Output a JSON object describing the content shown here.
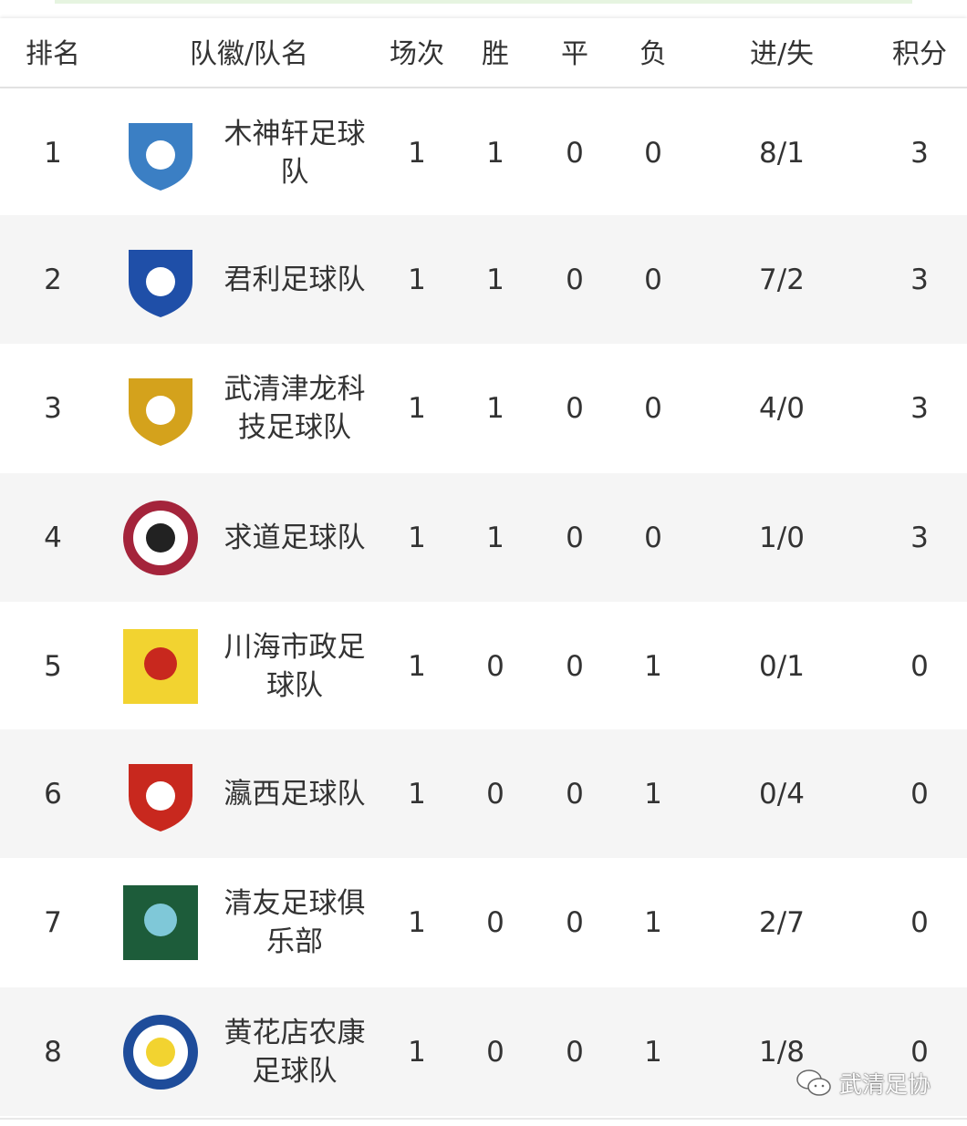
{
  "headers": {
    "rank": "排名",
    "team": "队徽/队名",
    "played": "场次",
    "won": "胜",
    "drawn": "平",
    "lost": "负",
    "goals": "进/失",
    "points": "积分"
  },
  "rows": [
    {
      "rank": "1",
      "team": "木神轩足球队",
      "played": "1",
      "won": "1",
      "drawn": "0",
      "lost": "0",
      "goals": "8/1",
      "points": "3",
      "logo": "eagle-crest-icon",
      "color": "#3b7fc4"
    },
    {
      "rank": "2",
      "team": "君利足球队",
      "played": "1",
      "won": "1",
      "drawn": "0",
      "lost": "0",
      "goals": "7/2",
      "points": "3",
      "logo": "shield-crest-icon",
      "color": "#1f4fa8"
    },
    {
      "rank": "3",
      "team": "武清津龙科技足球队",
      "played": "1",
      "won": "1",
      "drawn": "0",
      "lost": "0",
      "goals": "4/0",
      "points": "3",
      "logo": "pegasus-shield-icon",
      "color": "#d4a21c"
    },
    {
      "rank": "4",
      "team": "求道足球队",
      "played": "1",
      "won": "1",
      "drawn": "0",
      "lost": "0",
      "goals": "1/0",
      "points": "3",
      "logo": "round-badge-icon",
      "color": "#a4243b"
    },
    {
      "rank": "5",
      "team": "川海市政足球队",
      "played": "1",
      "won": "0",
      "drawn": "0",
      "lost": "1",
      "goals": "0/1",
      "points": "0",
      "logo": "yellow-square-crest-icon",
      "color": "#f2d330"
    },
    {
      "rank": "6",
      "team": "瀛西足球队",
      "played": "1",
      "won": "0",
      "drawn": "0",
      "lost": "1",
      "goals": "0/4",
      "points": "0",
      "logo": "red-shield-crest-icon",
      "color": "#c8281e"
    },
    {
      "rank": "7",
      "team": "清友足球俱乐部",
      "played": "1",
      "won": "0",
      "drawn": "0",
      "lost": "1",
      "goals": "2/7",
      "points": "0",
      "logo": "qingyou-crest-icon",
      "color": "#1d5c3a"
    },
    {
      "rank": "8",
      "team": "黄花店农康足球队",
      "played": "1",
      "won": "0",
      "drawn": "0",
      "lost": "1",
      "goals": "1/8",
      "points": "0",
      "logo": "flower-badge-icon",
      "color": "#1e4c9a"
    }
  ],
  "watermark": "武清足协"
}
